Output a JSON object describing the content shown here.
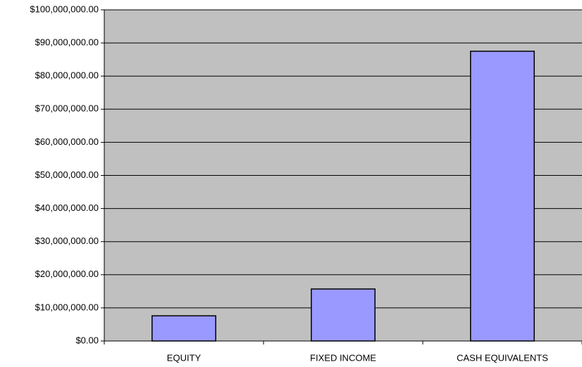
{
  "chart_data": {
    "type": "bar",
    "categories": [
      "EQUITY",
      "FIXED INCOME",
      "CASH EQUIVALENTS"
    ],
    "values": [
      7600000,
      15700000,
      87500000
    ],
    "color": "#9999ff",
    "ylim": [
      0,
      100000000
    ],
    "yticks": [
      {
        "value": 0,
        "label": "$0.00"
      },
      {
        "value": 10000000,
        "label": "$10,000,000.00"
      },
      {
        "value": 20000000,
        "label": "$20,000,000.00"
      },
      {
        "value": 30000000,
        "label": "$30,000,000.00"
      },
      {
        "value": 40000000,
        "label": "$40,000,000.00"
      },
      {
        "value": 50000000,
        "label": "$50,000,000.00"
      },
      {
        "value": 60000000,
        "label": "$60,000,000.00"
      },
      {
        "value": 70000000,
        "label": "$70,000,000.00"
      },
      {
        "value": 80000000,
        "label": "$80,000,000.00"
      },
      {
        "value": 90000000,
        "label": "$90,000,000.00"
      },
      {
        "value": 100000000,
        "label": "$100,000,000.00"
      }
    ],
    "grid": true
  }
}
